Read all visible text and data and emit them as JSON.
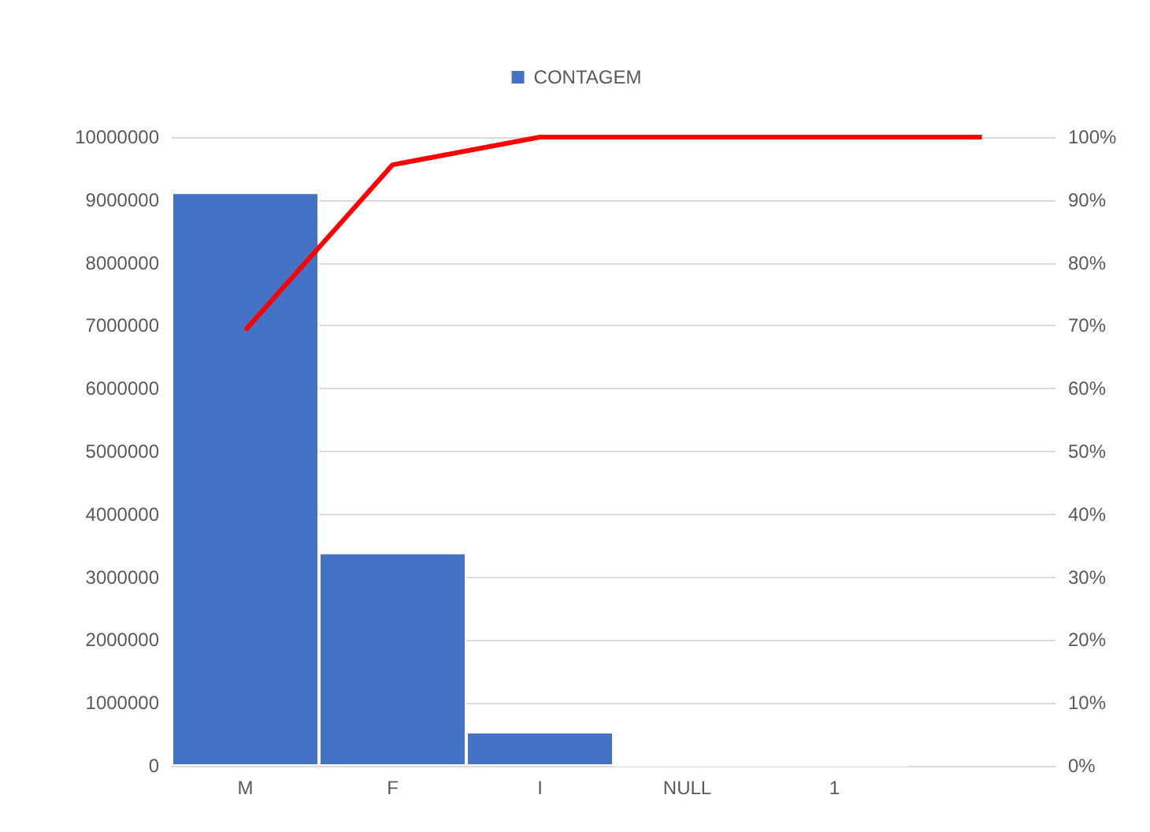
{
  "chart_data": {
    "type": "bar",
    "categories": [
      "M",
      "F",
      "I",
      "NULL",
      "1",
      null
    ],
    "series": [
      {
        "name": "CONTAGEM",
        "color": "#4472c4",
        "values": [
          9120000,
          3390000,
          540000,
          0,
          0,
          null
        ]
      },
      {
        "type": "line",
        "axis": "y2",
        "color": "#ff0000",
        "values": [
          69.3,
          95.6,
          100,
          100,
          100,
          100
        ]
      }
    ],
    "ylim": [
      0,
      10000000
    ],
    "yticks": [
      0,
      1000000,
      2000000,
      3000000,
      4000000,
      5000000,
      6000000,
      7000000,
      8000000,
      9000000,
      10000000
    ],
    "y2lim": [
      0,
      100
    ],
    "y2ticks": [
      {
        "value": 0,
        "label": "0%"
      },
      {
        "value": 10,
        "label": "10%"
      },
      {
        "value": 20,
        "label": "20%"
      },
      {
        "value": 30,
        "label": "30%"
      },
      {
        "value": 40,
        "label": "40%"
      },
      {
        "value": 50,
        "label": "50%"
      },
      {
        "value": 60,
        "label": "60%"
      },
      {
        "value": 70,
        "label": "70%"
      },
      {
        "value": 80,
        "label": "80%"
      },
      {
        "value": 90,
        "label": "90%"
      },
      {
        "value": 100,
        "label": "100%"
      }
    ],
    "grid": "y",
    "legend": "top",
    "marker": "none"
  }
}
